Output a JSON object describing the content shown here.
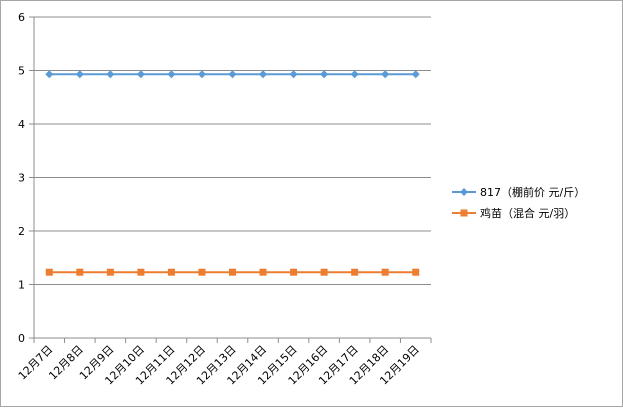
{
  "chart_data": {
    "type": "line",
    "categories": [
      "12月7日",
      "12月8日",
      "12月9日",
      "12月10日",
      "12月11日",
      "12月12日",
      "12月13日",
      "12月14日",
      "12月15日",
      "12月16日",
      "12月17日",
      "12月18日",
      "12月19日"
    ],
    "series": [
      {
        "name": "817（棚前价 元/斤）",
        "values": [
          4.93,
          4.93,
          4.93,
          4.93,
          4.93,
          4.93,
          4.93,
          4.93,
          4.93,
          4.93,
          4.93,
          4.93,
          4.93
        ],
        "color": "#5b9bd5",
        "marker": "diamond"
      },
      {
        "name": "鸡苗（混合 元/羽）",
        "values": [
          1.23,
          1.23,
          1.23,
          1.23,
          1.23,
          1.23,
          1.23,
          1.23,
          1.23,
          1.23,
          1.23,
          1.23,
          1.23
        ],
        "color": "#ed7d31",
        "marker": "square"
      }
    ],
    "ylim": [
      0,
      6
    ],
    "yticks": [
      0,
      1,
      2,
      3,
      4,
      5,
      6
    ],
    "grid": true,
    "legend": "right"
  }
}
